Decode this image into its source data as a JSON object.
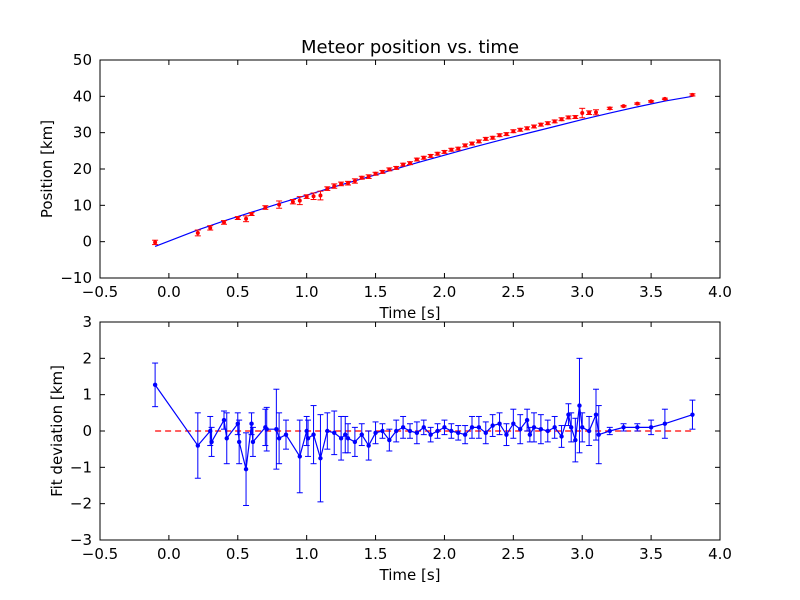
{
  "chart_data": [
    {
      "type": "scatter",
      "title": "Meteor position vs. time",
      "xlabel": "Time [s]",
      "ylabel": "Position [km]",
      "xlim": [
        -0.5,
        4.0
      ],
      "ylim": [
        -10,
        50
      ],
      "xticks": [
        -0.5,
        0.0,
        0.5,
        1.0,
        1.5,
        2.0,
        2.5,
        3.0,
        3.5,
        4.0
      ],
      "xtick_labels": [
        "−0.5",
        "0.0",
        "0.5",
        "1.0",
        "1.5",
        "2.0",
        "2.5",
        "3.0",
        "3.5",
        "4.0"
      ],
      "yticks": [
        -10,
        0,
        10,
        20,
        30,
        40,
        50
      ],
      "ytick_labels": [
        "−10",
        "0",
        "10",
        "20",
        "30",
        "40",
        "50"
      ],
      "grid": false,
      "colors": {
        "data": "#ff0000",
        "fit": "#0000ff"
      },
      "series": [
        {
          "kind": "errorbar-points",
          "color": "#ff0000",
          "t": [
            -0.1,
            0.21,
            0.3,
            0.4,
            0.5,
            0.56,
            0.6,
            0.7,
            0.8,
            0.9,
            0.95,
            1.0,
            1.05,
            1.1,
            1.15,
            1.2,
            1.25,
            1.3,
            1.35,
            1.4,
            1.45,
            1.5,
            1.55,
            1.6,
            1.65,
            1.7,
            1.75,
            1.8,
            1.85,
            1.9,
            1.95,
            2.0,
            2.05,
            2.1,
            2.15,
            2.2,
            2.25,
            2.3,
            2.35,
            2.4,
            2.45,
            2.5,
            2.55,
            2.6,
            2.65,
            2.7,
            2.75,
            2.8,
            2.85,
            2.9,
            2.95,
            3.0,
            3.05,
            3.1,
            3.2,
            3.3,
            3.4,
            3.5,
            3.6,
            3.8
          ],
          "y": [
            -0.2,
            2.4,
            3.8,
            5.3,
            6.5,
            6.3,
            7.6,
            9.4,
            10.2,
            11.0,
            11.3,
            12.4,
            12.5,
            12.7,
            14.6,
            15.3,
            15.9,
            16.1,
            16.7,
            17.6,
            17.9,
            18.7,
            19.2,
            19.9,
            20.3,
            21.2,
            21.6,
            22.6,
            23.1,
            23.6,
            24.2,
            24.7,
            25.3,
            25.6,
            26.5,
            27.0,
            27.6,
            28.3,
            28.6,
            29.3,
            29.6,
            30.4,
            30.8,
            31.2,
            31.7,
            32.2,
            32.6,
            33.1,
            33.7,
            34.2,
            34.3,
            35.4,
            35.5,
            35.6,
            36.7,
            37.3,
            38.0,
            38.6,
            39.3,
            40.4
          ],
          "err": [
            0.6,
            0.8,
            0.6,
            0.5,
            0.4,
            0.8,
            0.4,
            0.5,
            1.0,
            0.6,
            1.1,
            0.5,
            0.9,
            1.2,
            0.5,
            0.6,
            0.5,
            0.5,
            0.6,
            0.4,
            0.5,
            0.4,
            0.4,
            0.4,
            0.4,
            0.4,
            0.4,
            0.4,
            0.4,
            0.4,
            0.4,
            0.4,
            0.4,
            0.4,
            0.4,
            0.4,
            0.4,
            0.4,
            0.4,
            0.4,
            0.4,
            0.4,
            0.4,
            0.4,
            0.4,
            0.4,
            0.4,
            0.4,
            0.4,
            0.4,
            0.4,
            1.3,
            0.5,
            0.7,
            0.3,
            0.2,
            0.2,
            0.2,
            0.2,
            0.3
          ]
        },
        {
          "kind": "line",
          "color": "#0000ff",
          "t": [
            -0.1,
            0.2,
            0.4,
            0.6,
            0.8,
            1.0,
            1.2,
            1.4,
            1.6,
            1.8,
            2.0,
            2.2,
            2.4,
            2.6,
            2.8,
            3.0,
            3.2,
            3.4,
            3.6,
            3.8
          ],
          "y": [
            -1.3,
            3.1,
            5.7,
            8.1,
            10.5,
            12.8,
            15.1,
            17.3,
            19.5,
            21.7,
            23.8,
            25.9,
            27.9,
            29.8,
            31.7,
            33.6,
            35.4,
            37.1,
            38.7,
            40.0
          ]
        }
      ]
    },
    {
      "type": "line",
      "title": "",
      "xlabel": "Time [s]",
      "ylabel": "Fit deviation [km]",
      "xlim": [
        -0.5,
        4.0
      ],
      "ylim": [
        -3,
        3
      ],
      "xticks": [
        -0.5,
        0.0,
        0.5,
        1.0,
        1.5,
        2.0,
        2.5,
        3.0,
        3.5,
        4.0
      ],
      "xtick_labels": [
        "−0.5",
        "0.0",
        "0.5",
        "1.0",
        "1.5",
        "2.0",
        "2.5",
        "3.0",
        "3.5",
        "4.0"
      ],
      "yticks": [
        -3,
        -2,
        -1,
        0,
        1,
        2,
        3
      ],
      "ytick_labels": [
        "−3",
        "−2",
        "−1",
        "0",
        "1",
        "2",
        "3"
      ],
      "grid": false,
      "colors": {
        "residual": "#0000ff",
        "zero": "#ff0000"
      },
      "zero_line": {
        "style": "dashed",
        "color": "#ff0000",
        "x": [
          -0.1,
          3.8
        ],
        "y": 0
      },
      "series": [
        {
          "kind": "errorbar-line",
          "color": "#0000ff",
          "t": [
            -0.1,
            0.21,
            0.3,
            0.31,
            0.4,
            0.42,
            0.5,
            0.51,
            0.56,
            0.6,
            0.61,
            0.7,
            0.71,
            0.78,
            0.8,
            0.85,
            0.95,
            1.0,
            1.01,
            1.05,
            1.1,
            1.15,
            1.2,
            1.25,
            1.28,
            1.3,
            1.35,
            1.4,
            1.45,
            1.5,
            1.55,
            1.6,
            1.65,
            1.7,
            1.75,
            1.8,
            1.85,
            1.9,
            1.95,
            2.0,
            2.05,
            2.1,
            2.15,
            2.2,
            2.25,
            2.3,
            2.35,
            2.4,
            2.45,
            2.5,
            2.55,
            2.6,
            2.62,
            2.65,
            2.7,
            2.75,
            2.8,
            2.85,
            2.9,
            2.92,
            2.95,
            2.98,
            3.0,
            3.05,
            3.1,
            3.12,
            3.2,
            3.3,
            3.4,
            3.5,
            3.6,
            3.8
          ],
          "y": [
            1.27,
            -0.4,
            0.0,
            -0.3,
            0.3,
            -0.2,
            0.2,
            -0.3,
            -1.05,
            0.2,
            -0.3,
            0.1,
            0.05,
            0.05,
            -0.2,
            -0.1,
            -0.7,
            0.0,
            -0.2,
            -0.1,
            -0.75,
            0.0,
            -0.05,
            -0.2,
            -0.1,
            -0.2,
            -0.3,
            -0.1,
            -0.4,
            -0.05,
            0.0,
            -0.25,
            0.0,
            0.1,
            0.0,
            -0.05,
            0.1,
            -0.1,
            0.0,
            0.1,
            0.0,
            -0.05,
            -0.1,
            0.1,
            0.1,
            -0.05,
            0.15,
            0.2,
            -0.1,
            0.2,
            0.05,
            0.3,
            -0.1,
            0.1,
            0.05,
            0.0,
            0.1,
            -0.15,
            0.45,
            0.1,
            -0.25,
            0.7,
            0.1,
            0.0,
            0.45,
            -0.1,
            0.0,
            0.1,
            0.1,
            0.1,
            0.2,
            0.45
          ],
          "err": [
            0.6,
            0.9,
            0.4,
            0.4,
            0.25,
            0.7,
            0.3,
            0.6,
            1.0,
            0.3,
            0.4,
            0.5,
            0.6,
            1.1,
            0.7,
            0.4,
            1.0,
            0.4,
            0.5,
            0.8,
            1.2,
            0.5,
            0.6,
            0.6,
            0.5,
            0.4,
            0.4,
            0.3,
            0.4,
            0.3,
            0.2,
            0.3,
            0.3,
            0.3,
            0.2,
            0.3,
            0.2,
            0.2,
            0.2,
            0.2,
            0.2,
            0.2,
            0.25,
            0.3,
            0.3,
            0.3,
            0.3,
            0.3,
            0.3,
            0.4,
            0.4,
            0.3,
            0.2,
            0.4,
            0.4,
            0.3,
            0.3,
            0.3,
            0.3,
            0.4,
            0.6,
            1.3,
            0.4,
            0.4,
            0.7,
            0.8,
            0.1,
            0.1,
            0.1,
            0.2,
            0.4,
            0.4
          ]
        }
      ]
    }
  ]
}
